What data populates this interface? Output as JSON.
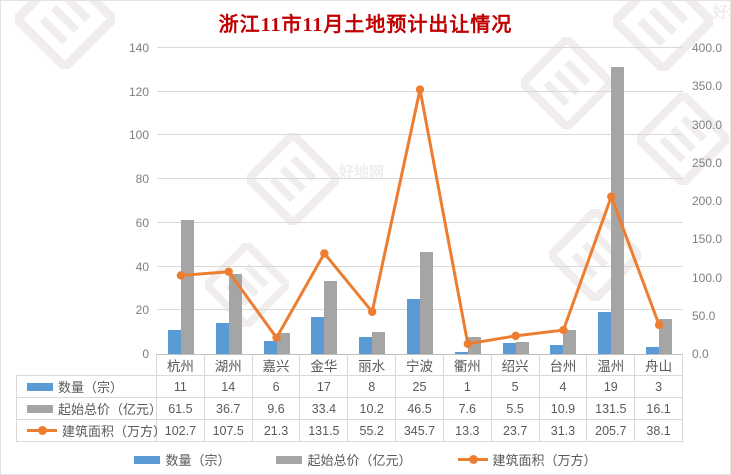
{
  "title": "浙江11市11月土地预计出让情况",
  "colors": {
    "title_text": "#C00000",
    "bar_blue": "#5B9BD5",
    "bar_gray": "#A5A5A5",
    "line_orange": "#ED7D31",
    "grid": "#D9D9D9",
    "axis_line": "#BFBFBF",
    "axis_text": "#7F7F7F",
    "table_text": "#595959",
    "watermark": "#E4E0DE"
  },
  "watermark": {
    "text": "好地网"
  },
  "chart_data": {
    "type": "bar+line combo, dual y-axes, data table below plot",
    "categories": [
      "杭州",
      "湖州",
      "嘉兴",
      "金华",
      "丽水",
      "宁波",
      "衢州",
      "绍兴",
      "台州",
      "温州",
      "舟山"
    ],
    "series": [
      {
        "name": "数量（宗）",
        "type": "bar",
        "axis": "left",
        "color": "#5B9BD5",
        "decimals": 0,
        "values": [
          11,
          14,
          6,
          17,
          8,
          25,
          1,
          5,
          4,
          19,
          3
        ]
      },
      {
        "name": "起始总价（亿元）",
        "type": "bar",
        "axis": "left",
        "color": "#A5A5A5",
        "decimals": 1,
        "values": [
          61.5,
          36.7,
          9.6,
          33.4,
          10.2,
          46.5,
          7.6,
          5.5,
          10.9,
          131.5,
          16.1
        ]
      },
      {
        "name": "建筑面积（万方）",
        "type": "line",
        "axis": "right",
        "color": "#ED7D31",
        "decimals": 1,
        "values": [
          102.7,
          107.5,
          21.3,
          131.5,
          55.2,
          345.7,
          13.3,
          23.7,
          31.3,
          205.7,
          38.1
        ]
      }
    ],
    "left_axis": {
      "min": 0,
      "max": 140,
      "step": 20,
      "ticks": [
        "0",
        "20",
        "40",
        "60",
        "80",
        "100",
        "120",
        "140"
      ]
    },
    "right_axis": {
      "min": 0,
      "max": 400,
      "step": 50,
      "ticks": [
        "0.0",
        "50.0",
        "100.0",
        "150.0",
        "200.0",
        "250.0",
        "300.0",
        "350.0",
        "400.0"
      ]
    },
    "grid": true,
    "legend_position": "bottom"
  }
}
